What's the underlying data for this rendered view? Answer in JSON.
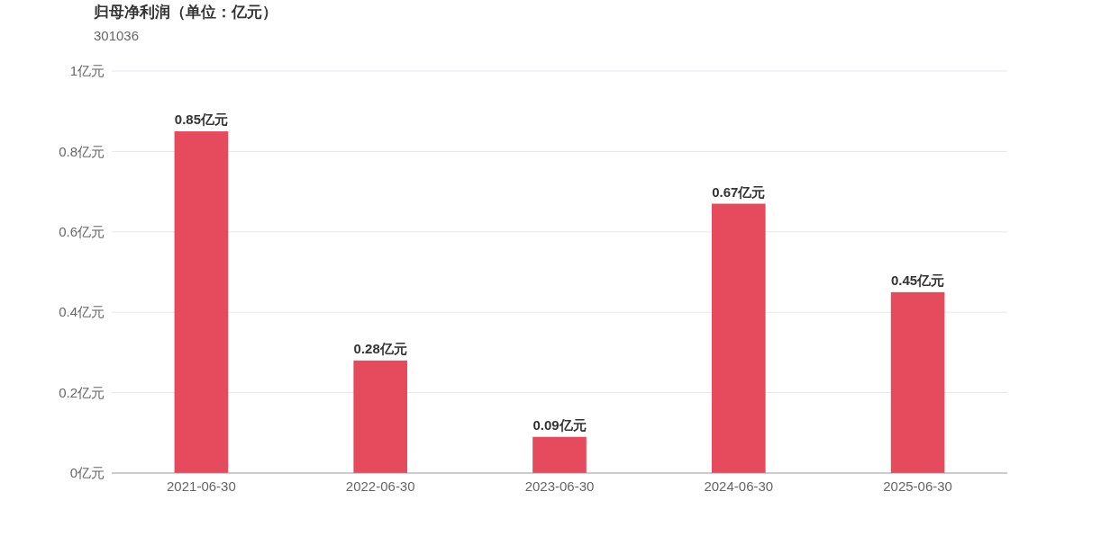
{
  "chart_data": {
    "type": "bar",
    "title": "归母净利润（单位：亿元）",
    "subtitle": "301036",
    "categories": [
      "2021-06-30",
      "2022-06-30",
      "2023-06-30",
      "2024-06-30",
      "2025-06-30"
    ],
    "series": [
      {
        "color": "#e64a5d",
        "values": [
          0.85,
          0.28,
          0.09,
          0.67,
          0.45
        ],
        "value_labels": [
          "0.85亿元",
          "0.28亿元",
          "0.09亿元",
          "0.67亿元",
          "0.45亿元"
        ]
      }
    ],
    "ylim": [
      0,
      1
    ],
    "yticks": [
      {
        "value": 0,
        "label": "0亿元"
      },
      {
        "value": 0.2,
        "label": "0.2亿元"
      },
      {
        "value": 0.4,
        "label": "0.4亿元"
      },
      {
        "value": 0.6,
        "label": "0.6亿元"
      },
      {
        "value": 0.8,
        "label": "0.8亿元"
      },
      {
        "value": 1,
        "label": "1亿元"
      }
    ],
    "grid": "y"
  }
}
